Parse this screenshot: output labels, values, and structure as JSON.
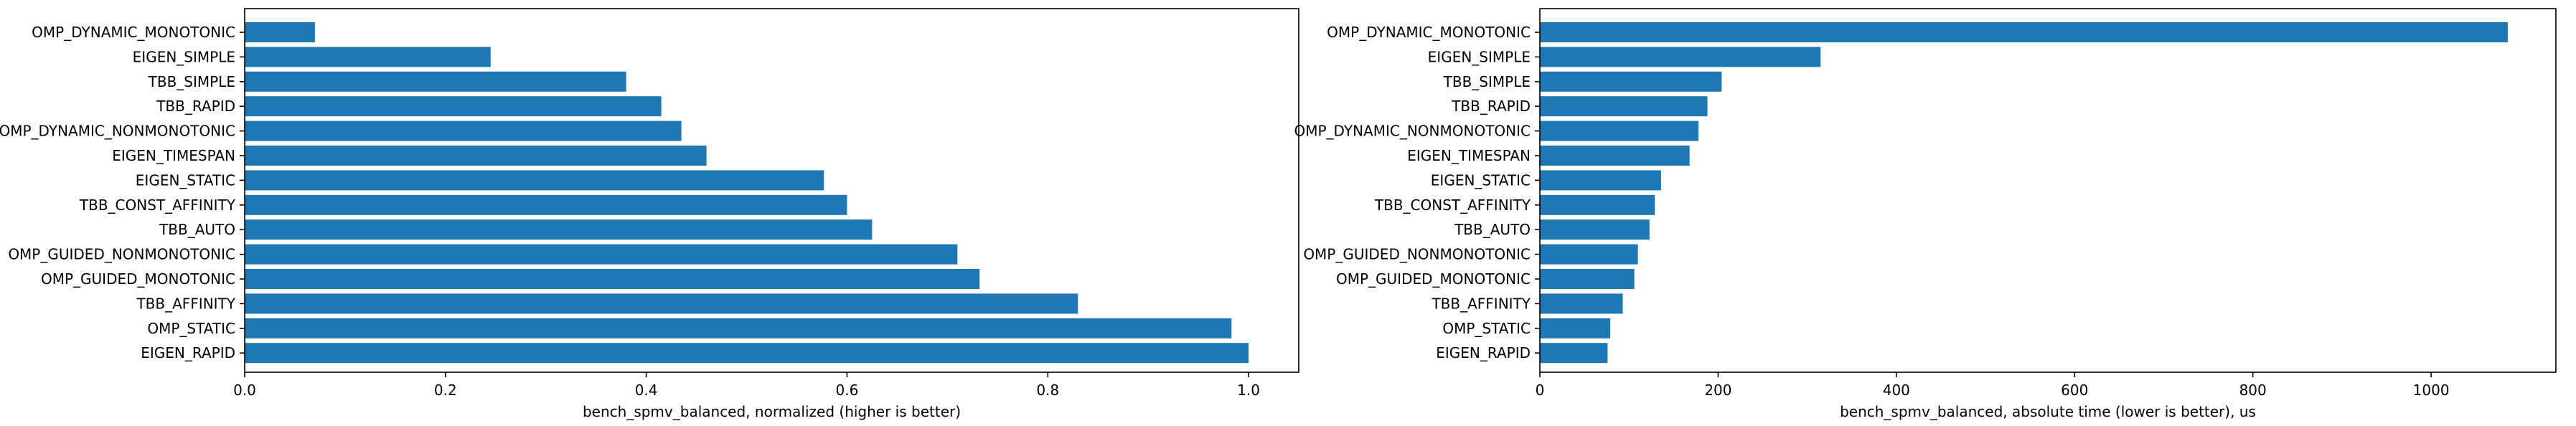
{
  "chart_data": [
    {
      "type": "bar",
      "orientation": "horizontal",
      "categories": [
        "OMP_DYNAMIC_MONOTONIC",
        "EIGEN_SIMPLE",
        "TBB_SIMPLE",
        "TBB_RAPID",
        "OMP_DYNAMIC_NONMONOTONIC",
        "EIGEN_TIMESPAN",
        "EIGEN_STATIC",
        "TBB_CONST_AFFINITY",
        "TBB_AUTO",
        "OMP_GUIDED_NONMONOTONIC",
        "OMP_GUIDED_MONOTONIC",
        "TBB_AFFINITY",
        "OMP_STATIC",
        "EIGEN_RAPID"
      ],
      "values": [
        0.07,
        0.245,
        0.38,
        0.415,
        0.435,
        0.46,
        0.577,
        0.6,
        0.625,
        0.71,
        0.732,
        0.83,
        0.983,
        1.0
      ],
      "xlabel": "bench_spmv_balanced, normalized (higher is better)",
      "xlim": [
        0,
        1.05
      ],
      "xticks": [
        0,
        0.2,
        0.4,
        0.6,
        0.8,
        1.0
      ],
      "xtick_labels": [
        "0.0",
        "0.2",
        "0.4",
        "0.6",
        "0.8",
        "1.0"
      ],
      "color": "#1f77b4",
      "grid": false
    },
    {
      "type": "bar",
      "orientation": "horizontal",
      "categories": [
        "OMP_DYNAMIC_MONOTONIC",
        "EIGEN_SIMPLE",
        "TBB_SIMPLE",
        "TBB_RAPID",
        "OMP_DYNAMIC_NONMONOTONIC",
        "EIGEN_TIMESPAN",
        "EIGEN_STATIC",
        "TBB_CONST_AFFINITY",
        "TBB_AUTO",
        "OMP_GUIDED_NONMONOTONIC",
        "OMP_GUIDED_MONOTONIC",
        "TBB_AFFINITY",
        "OMP_STATIC",
        "EIGEN_RAPID"
      ],
      "values": [
        1086,
        315,
        204,
        188,
        178,
        168,
        136,
        129,
        123,
        110,
        106,
        93,
        79,
        76
      ],
      "xlabel": "bench_spmv_balanced, absolute time (lower is better), us",
      "xlim": [
        0,
        1140
      ],
      "xticks": [
        0,
        200,
        400,
        600,
        800,
        1000
      ],
      "xtick_labels": [
        "0",
        "200",
        "400",
        "600",
        "800",
        "1000"
      ],
      "color": "#1f77b4",
      "grid": false
    }
  ]
}
